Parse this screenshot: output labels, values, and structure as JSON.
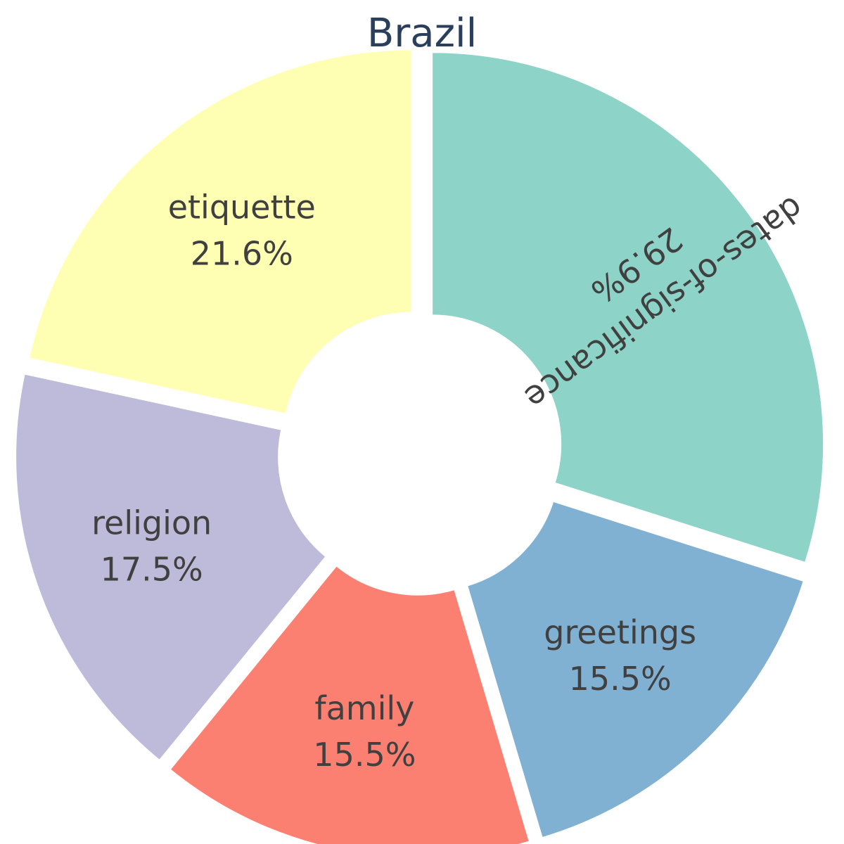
{
  "chart_data": {
    "type": "pie",
    "title": "Brazil",
    "donut": true,
    "series": [
      {
        "label": "dates-of-significance",
        "value": 29.9,
        "value_label": "29.9%",
        "color": "#8dd3c7"
      },
      {
        "label": "greetings",
        "value": 15.5,
        "value_label": "15.5%",
        "color": "#80b1d3"
      },
      {
        "label": "family",
        "value": 15.5,
        "value_label": "15.5%",
        "color": "#fb8072"
      },
      {
        "label": "religion",
        "value": 17.5,
        "value_label": "17.5%",
        "color": "#bebada"
      },
      {
        "label": "etiquette",
        "value": 21.6,
        "value_label": "21.6%",
        "color": "#ffffb3"
      }
    ]
  }
}
